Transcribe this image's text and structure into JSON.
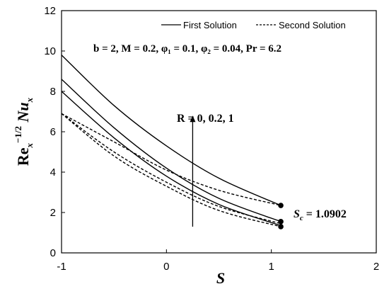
{
  "chart_data": {
    "type": "line",
    "title": "",
    "xlabel": "S",
    "ylabel": {
      "base": "Re",
      "sub1": "x",
      "sup": "−1/2",
      "main": " Nu",
      "sub2": "x"
    },
    "xlim": [
      -1,
      2
    ],
    "ylim": [
      0,
      12
    ],
    "xticks": [
      "-1",
      "0",
      "1",
      "2"
    ],
    "yticks": [
      "0",
      "2",
      "4",
      "6",
      "8",
      "10",
      "12"
    ],
    "grid": false,
    "legend": {
      "placement": "top",
      "entries": [
        {
          "label": "First Solution",
          "style": "solid"
        },
        {
          "label": "Second Solution",
          "style": "dashed"
        }
      ]
    },
    "parameters_text": "b = 2, M = 0.2, φ₁ = 0.1, φ₂ = 0.04, Pr = 6.2",
    "arrow_label": "R = 0, 0.2, 1",
    "critical": {
      "label_main": "S",
      "label_sub": "c",
      "label_value": " = 1.0902",
      "x": 1.0902
    },
    "series": [
      {
        "name": "First Solution",
        "style": "solid",
        "x": [
          -1,
          -0.5,
          0,
          0.5,
          1.0902
        ],
        "y": [
          8.0,
          5.7,
          3.8,
          2.4,
          1.35
        ]
      },
      {
        "name": "First Solution",
        "style": "solid",
        "x": [
          -1,
          -0.5,
          0,
          0.5,
          1.0902
        ],
        "y": [
          8.6,
          6.2,
          4.2,
          2.7,
          1.55
        ]
      },
      {
        "name": "First Solution",
        "style": "solid",
        "x": [
          -1,
          -0.5,
          0,
          0.5,
          1.0902
        ],
        "y": [
          9.8,
          7.3,
          5.3,
          3.7,
          2.35
        ]
      },
      {
        "name": "Second Solution",
        "style": "dashed",
        "x": [
          -1,
          -0.5,
          0,
          0.5,
          1.0902
        ],
        "y": [
          6.9,
          4.8,
          3.3,
          2.1,
          1.3
        ]
      },
      {
        "name": "Second Solution",
        "style": "dashed",
        "x": [
          -1,
          -0.5,
          0,
          0.5,
          1.0902
        ],
        "y": [
          6.9,
          5.0,
          3.5,
          2.3,
          1.45
        ]
      },
      {
        "name": "Second Solution",
        "style": "dashed",
        "x": [
          -1,
          -0.5,
          0,
          0.5,
          1.0902
        ],
        "y": [
          6.9,
          5.5,
          4.1,
          3.1,
          2.35
        ]
      }
    ],
    "end_points": [
      {
        "x": 1.0902,
        "y": 1.3
      },
      {
        "x": 1.0902,
        "y": 1.55
      },
      {
        "x": 1.0902,
        "y": 2.35
      }
    ],
    "arrow": {
      "x": 0.25,
      "y_start": 1.3,
      "y_end": 6.8
    }
  }
}
